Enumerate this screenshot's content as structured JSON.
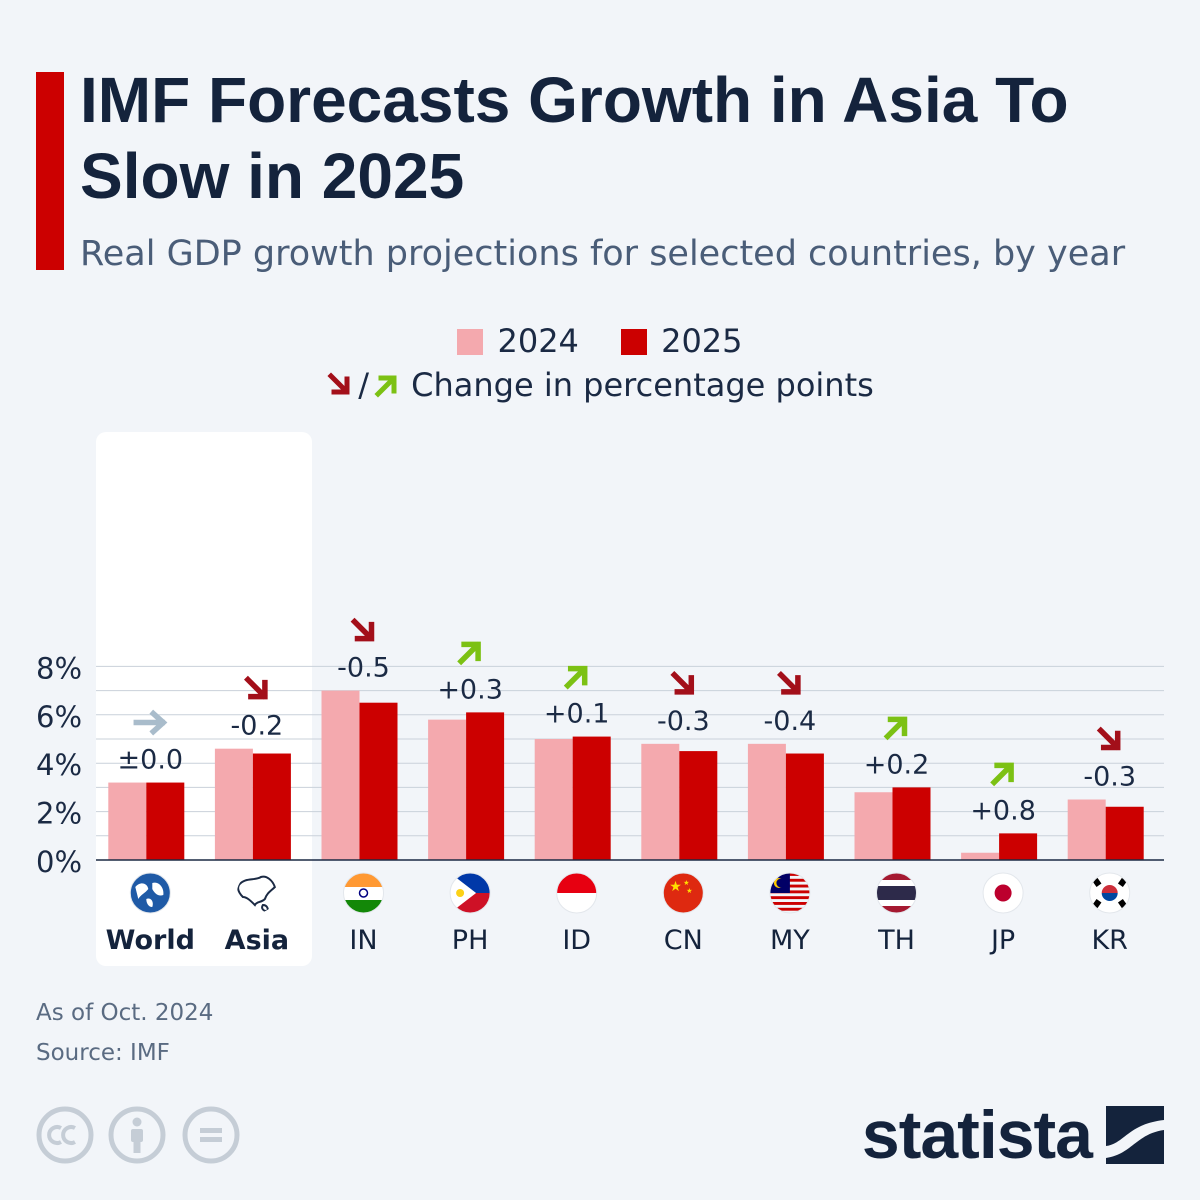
{
  "title": "IMF Forecasts Growth in Asia To Slow in 2025",
  "subtitle": "Real GDP growth projections for selected countries, by year",
  "legend": {
    "series_2024": "2024",
    "series_2025": "2025",
    "slash": "/",
    "change_label": "Change in percentage points"
  },
  "colors": {
    "series_2024": "#f4a9ae",
    "series_2025": "#cc0000",
    "down_arrow": "#a30f1a",
    "up_arrow": "#7cc114",
    "neutral_arrow": "#a9bccb",
    "highlight_panel": "#ffffff",
    "grid": "#c9d1da"
  },
  "chart_data": {
    "type": "bar",
    "title": "IMF Forecasts Growth in Asia To Slow in 2025",
    "ylabel": "",
    "ylim": [
      0,
      8
    ],
    "yticks": [
      "0%",
      "2%",
      "4%",
      "6%",
      "8%"
    ],
    "highlighted_categories": [
      "World",
      "Asia"
    ],
    "categories": [
      {
        "label": "World",
        "icon": "globe-icon",
        "v2024": 3.2,
        "v2025": 3.2,
        "change": "±0.0",
        "direction": "neutral"
      },
      {
        "label": "Asia",
        "icon": "asia-map-icon",
        "v2024": 4.6,
        "v2025": 4.4,
        "change": "-0.2",
        "direction": "down"
      },
      {
        "label": "IN",
        "icon": "india-flag-icon",
        "v2024": 7.0,
        "v2025": 6.5,
        "change": "-0.5",
        "direction": "down"
      },
      {
        "label": "PH",
        "icon": "philippines-flag-icon",
        "v2024": 5.8,
        "v2025": 6.1,
        "change": "+0.3",
        "direction": "up"
      },
      {
        "label": "ID",
        "icon": "indonesia-flag-icon",
        "v2024": 5.0,
        "v2025": 5.1,
        "change": "+0.1",
        "direction": "up"
      },
      {
        "label": "CN",
        "icon": "china-flag-icon",
        "v2024": 4.8,
        "v2025": 4.5,
        "change": "-0.3",
        "direction": "down"
      },
      {
        "label": "MY",
        "icon": "malaysia-flag-icon",
        "v2024": 4.8,
        "v2025": 4.4,
        "change": "-0.4",
        "direction": "down"
      },
      {
        "label": "TH",
        "icon": "thailand-flag-icon",
        "v2024": 2.8,
        "v2025": 3.0,
        "change": "+0.2",
        "direction": "up"
      },
      {
        "label": "JP",
        "icon": "japan-flag-icon",
        "v2024": 0.3,
        "v2025": 1.1,
        "change": "+0.8",
        "direction": "up"
      },
      {
        "label": "KR",
        "icon": "korea-flag-icon",
        "v2024": 2.5,
        "v2025": 2.2,
        "change": "-0.3",
        "direction": "down"
      }
    ],
    "series": [
      {
        "name": "2024",
        "values": [
          3.2,
          4.6,
          7.0,
          5.8,
          5.0,
          4.8,
          4.8,
          2.8,
          0.3,
          2.5
        ]
      },
      {
        "name": "2025",
        "values": [
          3.2,
          4.4,
          6.5,
          6.1,
          5.1,
          4.5,
          4.4,
          3.0,
          1.1,
          2.2
        ]
      }
    ]
  },
  "footer": {
    "as_of": "As of Oct. 2024",
    "source": "Source: IMF",
    "brand": "statista",
    "license_icons": [
      "cc-icon",
      "attribution-icon",
      "no-derivatives-icon"
    ]
  }
}
